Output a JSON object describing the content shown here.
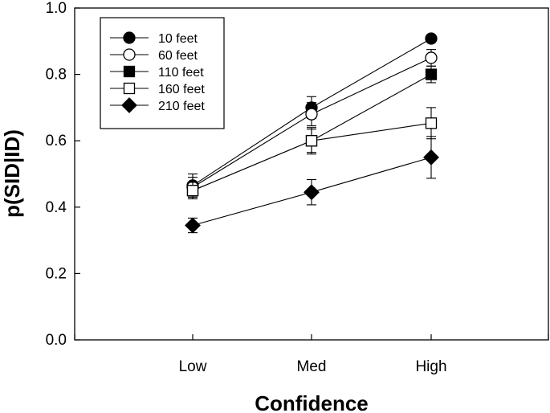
{
  "chart_data": {
    "type": "line",
    "xlabel": "Confidence",
    "ylabel": "p(SID|ID)",
    "categories": [
      "Low",
      "Med",
      "High"
    ],
    "ylim": [
      0,
      1.0
    ],
    "yticks": [
      "0.0",
      "0.2",
      "0.4",
      "0.6",
      "0.8",
      "1.0"
    ],
    "legend_position": "top-left",
    "series": [
      {
        "name": "10 feet",
        "marker": "circle-filled",
        "values": [
          0.465,
          0.7,
          0.908
        ],
        "errors": [
          0.035,
          0.033,
          0.0
        ]
      },
      {
        "name": "60 feet",
        "marker": "circle-open",
        "values": [
          0.46,
          0.68,
          0.85
        ],
        "errors": [
          0.03,
          0.035,
          0.025
        ]
      },
      {
        "name": "110 feet",
        "marker": "square-filled",
        "values": [
          0.45,
          0.6,
          0.8
        ],
        "errors": [
          0.025,
          0.035,
          0.025
        ]
      },
      {
        "name": "160 feet",
        "marker": "square-open",
        "values": [
          0.45,
          0.6,
          0.653
        ],
        "errors": [
          0.025,
          0.04,
          0.047
        ]
      },
      {
        "name": "210 feet",
        "marker": "diamond-filled",
        "values": [
          0.345,
          0.445,
          0.55
        ],
        "errors": [
          0.022,
          0.038,
          0.063
        ]
      }
    ]
  }
}
